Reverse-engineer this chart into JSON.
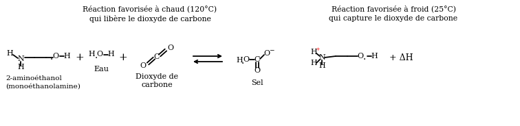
{
  "fig_width": 7.56,
  "fig_height": 1.84,
  "dpi": 100,
  "bg_color": "#ffffff",
  "text_color": "#000000",
  "red_color": "#ff0000",
  "header_left": "Réaction favorisée à chaud (120°C)\nqui libère le dioxyde de carbone",
  "header_right": "Réaction favorisée à froid (25°C)\nqui capture le dioxyde de carbone",
  "label_mea": "2-aminoéthanol\n(monoéthanolamine)",
  "label_water": "Eau",
  "label_co2": "Dioxyde de\ncarbone",
  "label_sel": "Sel",
  "label_dh": "+ ΔH"
}
